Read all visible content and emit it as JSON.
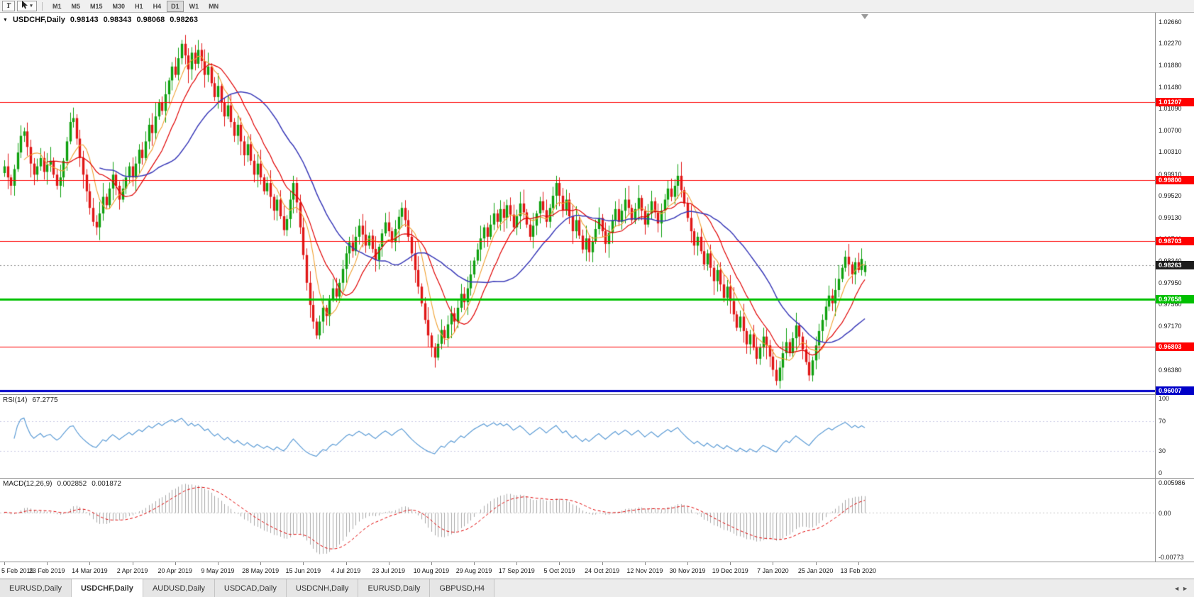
{
  "toolbar": {
    "text_tool_label": "T",
    "pointer_tool_icon": "cursor-arrow-icon",
    "timeframes": [
      "M1",
      "M5",
      "M15",
      "M30",
      "H1",
      "H4",
      "D1",
      "W1",
      "MN"
    ],
    "active_timeframe": "D1"
  },
  "chart": {
    "title": "USDCHF,Daily",
    "open": "0.98143",
    "high": "0.98343",
    "low": "0.98068",
    "close": "0.98263"
  },
  "indicators": {
    "rsi": {
      "name": "RSI(14)",
      "value": "67.2775",
      "period": 14,
      "axis_labels": [
        "100",
        "70",
        "30",
        "0"
      ],
      "levels": [
        70,
        30
      ],
      "color": "#5b9bd5"
    },
    "macd": {
      "name": "MACD(12,26,9)",
      "value_main": "0.002852",
      "value_signal": "0.001872",
      "fast": 12,
      "slow": 26,
      "signal": 9,
      "axis_top": "0.005986",
      "axis_zero": "0.00",
      "axis_bottom": "-0.00773",
      "hist_color": "#a8a8a8",
      "signal_color": "#e00000"
    }
  },
  "chart_data": {
    "type": "candlestick",
    "symbol": "USDCHF",
    "period": "Daily",
    "price_max": 1.0282,
    "price_min": 0.9594,
    "y_axis_labels": [
      "1.02660",
      "1.02270",
      "1.01880",
      "1.01480",
      "1.01090",
      "1.00700",
      "1.00310",
      "0.99910",
      "0.99520",
      "0.99130",
      "0.98740",
      "0.98340",
      "0.97950",
      "0.97560",
      "0.97170",
      "0.96780",
      "0.96380"
    ],
    "x_labels": [
      "5 Feb 2019",
      "23 Feb 2019",
      "14 Mar 2019",
      "2 Apr 2019",
      "20 Apr 2019",
      "9 May 2019",
      "28 May 2019",
      "15 Jun 2019",
      "4 Jul 2019",
      "23 Jul 2019",
      "10 Aug 2019",
      "29 Aug 2019",
      "17 Sep 2019",
      "5 Oct 2019",
      "24 Oct 2019",
      "12 Nov 2019",
      "30 Nov 2019",
      "19 Dec 2019",
      "7 Jan 2020",
      "25 Jan 2020",
      "13 Feb 2020"
    ],
    "x_label_step": 13,
    "closes": [
      1.0005,
      0.9985,
      0.997,
      1.0,
      1.003,
      1.006,
      1.0068,
      1.004,
      1.001,
      0.999,
      1.0005,
      1.002,
      0.9995,
      1.0008,
      1.0015,
      0.999,
      0.997,
      0.9985,
      1.0015,
      1.005,
      1.0085,
      1.0092,
      1.0055,
      1.002,
      0.999,
      0.996,
      0.993,
      0.9905,
      0.9895,
      0.992,
      0.995,
      0.9935,
      0.9965,
      0.999,
      0.997,
      0.9945,
      0.9965,
      0.9985,
      1.0005,
      0.9985,
      1.001,
      1.0035,
      1.002,
      1.005,
      1.008,
      1.0065,
      1.0095,
      1.012,
      1.0105,
      1.0135,
      1.016,
      1.0185,
      1.017,
      1.02,
      1.0226,
      1.0205,
      1.018,
      1.021,
      1.019,
      1.0215,
      1.0195,
      1.017,
      1.0185,
      1.0155,
      1.013,
      1.015,
      1.012,
      1.0095,
      1.0115,
      1.0085,
      1.006,
      1.008,
      1.005,
      1.0025,
      1.0045,
      1.0015,
      0.999,
      1.001,
      0.9985,
      0.996,
      0.9975,
      0.995,
      0.9925,
      0.9945,
      0.9915,
      0.989,
      0.991,
      0.9945,
      0.9975,
      0.994,
      0.9895,
      0.9845,
      0.9795,
      0.9755,
      0.9725,
      0.97,
      0.9725,
      0.975,
      0.9735,
      0.9765,
      0.9785,
      0.977,
      0.9795,
      0.982,
      0.9848,
      0.9868,
      0.9852,
      0.9878,
      0.9898,
      0.9882,
      0.9862,
      0.988,
      0.9856,
      0.9836,
      0.986,
      0.9884,
      0.9904,
      0.9888,
      0.9868,
      0.9892,
      0.9914,
      0.993,
      0.9908,
      0.9878,
      0.9848,
      0.9818,
      0.9788,
      0.9758,
      0.9728,
      0.97,
      0.9678,
      0.966,
      0.9685,
      0.971,
      0.9695,
      0.972,
      0.974,
      0.9725,
      0.975,
      0.9775,
      0.976,
      0.9785,
      0.981,
      0.9835,
      0.9855,
      0.9875,
      0.9895,
      0.9878,
      0.99,
      0.992,
      0.9905,
      0.9928,
      0.9912,
      0.9935,
      0.9918,
      0.9895,
      0.9915,
      0.9938,
      0.9922,
      0.99,
      0.9878,
      0.9898,
      0.992,
      0.9942,
      0.9926,
      0.9905,
      0.993,
      0.9952,
      0.9975,
      0.9952,
      0.9925,
      0.9945,
      0.9915,
      0.9888,
      0.9908,
      0.988,
      0.9855,
      0.9875,
      0.985,
      0.987,
      0.9892,
      0.9912,
      0.9888,
      0.9865,
      0.9885,
      0.9908,
      0.9928,
      0.9905,
      0.9925,
      0.9945,
      0.993,
      0.9908,
      0.9928,
      0.9948,
      0.9925,
      0.99,
      0.992,
      0.9942,
      0.9922,
      0.9902,
      0.9925,
      0.9945,
      0.9965,
      0.995,
      0.997,
      0.9988,
      0.9962,
      0.9938,
      0.9912,
      0.9888,
      0.9862,
      0.9878,
      0.9852,
      0.9828,
      0.9848,
      0.9822,
      0.9798,
      0.9818,
      0.9792,
      0.9768,
      0.9788,
      0.9762,
      0.9738,
      0.9714,
      0.9734,
      0.9708,
      0.9684,
      0.9702,
      0.9678,
      0.9658,
      0.9678,
      0.9698,
      0.9682,
      0.9662,
      0.9638,
      0.9618,
      0.9642,
      0.9668,
      0.9688,
      0.9668,
      0.9695,
      0.9718,
      0.9698,
      0.9675,
      0.9652,
      0.9628,
      0.9655,
      0.9682,
      0.9708,
      0.9728,
      0.9752,
      0.9772,
      0.9758,
      0.9782,
      0.9802,
      0.9822,
      0.9842,
      0.9828,
      0.981,
      0.9832,
      0.9818,
      0.9838,
      0.98263
    ],
    "last_ohlc": [
      0.98143,
      0.98343,
      0.98068,
      0.98263
    ],
    "wick_pattern": [
      0.0011,
      0.0018,
      0.0007,
      0.0023,
      0.0012,
      0.0016,
      0.0005,
      0.0021,
      0.0013,
      0.0008,
      0.0025,
      0.001,
      0.0017,
      0.0006,
      0.0014,
      0.0019
    ],
    "current_price": {
      "value": 0.98263,
      "label": "0.98263",
      "color": "#1c1c1c"
    },
    "hlines": [
      {
        "value": 1.01207,
        "label": "1.01207",
        "color": "#ff0000",
        "width": 1
      },
      {
        "value": 0.998,
        "label": "0.99800",
        "color": "#ff0000",
        "width": 1
      },
      {
        "value": 0.98703,
        "label": "0.98703",
        "color": "#ff0000",
        "width": 1
      },
      {
        "value": 0.97658,
        "label": "0.97658",
        "color": "#00c000",
        "width": 3
      },
      {
        "value": 0.96803,
        "label": "0.96803",
        "color": "#ff0000",
        "width": 1
      },
      {
        "value": 0.96007,
        "label": "0.96007",
        "color": "#0000c8",
        "width": 3
      }
    ],
    "moving_averages": [
      {
        "period": 7,
        "color": "#f0a030",
        "width": 1.1
      },
      {
        "period": 14,
        "color": "#e00000",
        "width": 1.2
      },
      {
        "period": 30,
        "color": "#3a3ab8",
        "width": 1.5
      }
    ],
    "colors": {
      "up": "#0fa00f",
      "down": "#e01616",
      "background": "#ffffff"
    }
  },
  "tabs": {
    "items": [
      "EURUSD,Daily",
      "USDCHF,Daily",
      "AUDUSD,Daily",
      "USDCAD,Daily",
      "USDCNH,Daily",
      "EURUSD,Daily",
      "GBPUSD,H4"
    ],
    "active_index": 1,
    "scroll_left_icon": "◄",
    "scroll_right_icon": "►"
  }
}
